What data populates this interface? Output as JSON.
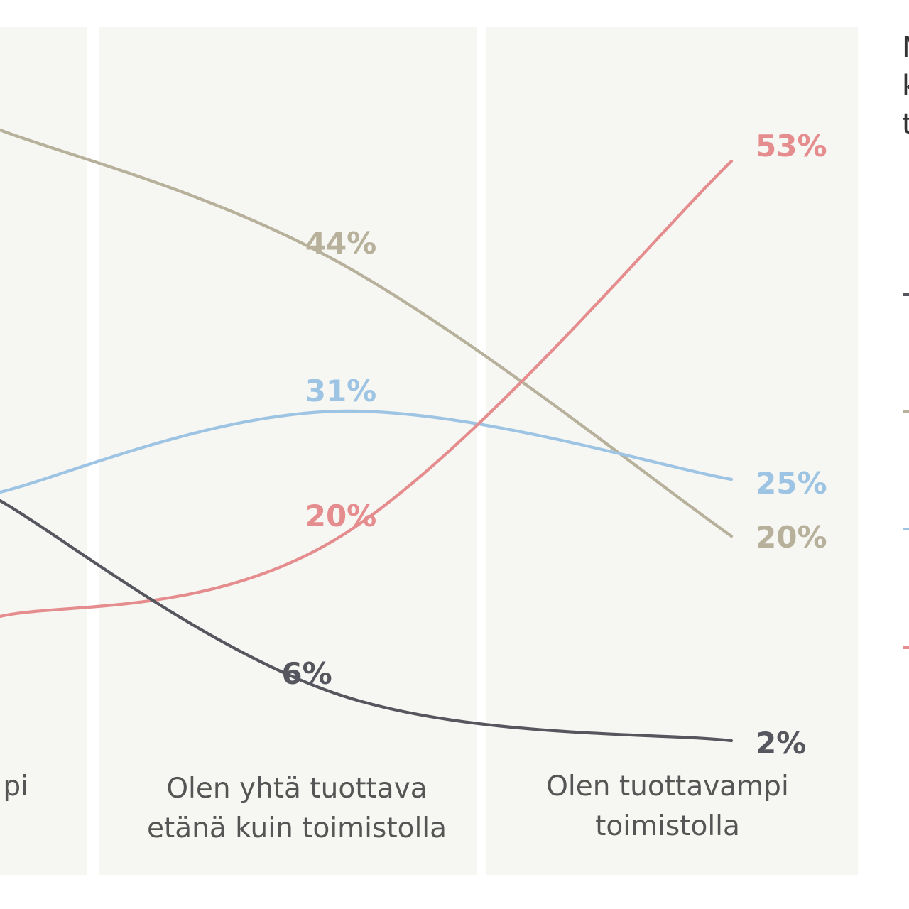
{
  "chart_data": {
    "type": "line",
    "categories": [
      "Olen tuottavampi etänä",
      "Olen yhtä tuottava etänä kuin toimistolla",
      "Olen tuottavampi toimistolla"
    ],
    "visible_category_fragments": [
      "pi"
    ],
    "category_lines": [
      [
        "pi"
      ],
      [
        "Olen yhtä tuottava",
        "etänä kuin toimistolla"
      ],
      [
        "Olen tuottavampi",
        "toimistolla"
      ]
    ],
    "value_labels": [
      {
        "series": 0,
        "point": 1,
        "text": "44%"
      },
      {
        "series": 0,
        "point": 2,
        "text": "20%"
      },
      {
        "series": 1,
        "point": 1,
        "text": "31%"
      },
      {
        "series": 1,
        "point": 2,
        "text": "25%"
      },
      {
        "series": 2,
        "point": 1,
        "text": "20%"
      },
      {
        "series": 2,
        "point": 2,
        "text": "53%"
      },
      {
        "series": 3,
        "point": 1,
        "text": "6%"
      },
      {
        "series": 3,
        "point": 2,
        "text": "2%"
      }
    ],
    "series": [
      {
        "color": "#b7b09b",
        "values": [
          null,
          44,
          20
        ]
      },
      {
        "color": "#9ec4e4",
        "values": [
          null,
          31,
          25
        ]
      },
      {
        "color": "#e58d8e",
        "values": [
          null,
          20,
          53
        ]
      },
      {
        "color": "#55565e",
        "values": [
          null,
          6,
          2
        ]
      }
    ],
    "legend_fragments": [
      "N",
      "k",
      "t"
    ],
    "legend_position": "right",
    "colors": {
      "panel": "#f6f6f2",
      "category_text": "#555555"
    }
  }
}
